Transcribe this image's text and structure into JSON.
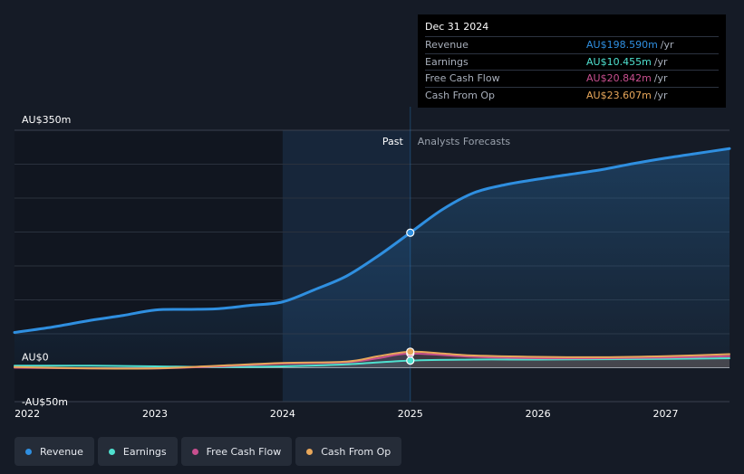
{
  "chart_data": {
    "type": "line",
    "y_tick_labels": [
      {
        "value": 350,
        "label": "AU$350m"
      },
      {
        "value": 0,
        "label": "AU$0"
      },
      {
        "value": -50,
        "label": "-AU$50m"
      }
    ],
    "ylim": [
      -50,
      350
    ],
    "xlim": [
      2021.9,
      2027.5
    ],
    "x_ticks": [
      2022,
      2023,
      2024,
      2025,
      2026,
      2027
    ],
    "grid": true,
    "past_forecast_split": 2025.0,
    "past_shade_start": 2024.0,
    "sections": {
      "past": "Past",
      "forecast": "Analysts Forecasts"
    },
    "series": [
      {
        "name": "Revenue",
        "color": "#2f8fe0",
        "x": [
          2021.9,
          2022.2,
          2022.5,
          2022.75,
          2023.0,
          2023.25,
          2023.5,
          2023.75,
          2024.0,
          2024.25,
          2024.5,
          2024.75,
          2025.0,
          2025.25,
          2025.5,
          2025.75,
          2026.0,
          2026.25,
          2026.5,
          2026.75,
          2027.0,
          2027.25,
          2027.5
        ],
        "y": [
          52,
          60,
          70,
          77,
          85,
          86,
          87,
          92,
          97,
          115,
          135,
          165,
          199,
          233,
          258,
          270,
          278,
          285,
          292,
          301,
          309,
          316,
          323
        ]
      },
      {
        "name": "Earnings",
        "color": "#4fe0cf",
        "x": [
          2021.9,
          2022.5,
          2023.0,
          2023.5,
          2024.0,
          2024.5,
          2025.0,
          2025.5,
          2026.0,
          2026.5,
          2027.0,
          2027.5
        ],
        "y": [
          3,
          3,
          2,
          1,
          2,
          5,
          10.5,
          12,
          12,
          12.5,
          13,
          14
        ]
      },
      {
        "name": "Free Cash Flow",
        "color": "#c84f8f",
        "x": [
          2021.9,
          2022.5,
          2023.0,
          2023.5,
          2024.0,
          2024.5,
          2024.75,
          2025.0,
          2025.5,
          2026.0,
          2026.5,
          2027.0,
          2027.5
        ],
        "y": [
          0,
          -1,
          -1,
          2,
          6,
          8,
          14,
          20.8,
          16,
          14,
          14,
          15,
          17
        ]
      },
      {
        "name": "Cash From Op",
        "color": "#e8a75a",
        "x": [
          2021.9,
          2022.5,
          2023.0,
          2023.5,
          2024.0,
          2024.5,
          2024.75,
          2025.0,
          2025.25,
          2025.5,
          2026.0,
          2026.5,
          2027.0,
          2027.5
        ],
        "y": [
          1,
          -1,
          -1,
          3,
          7,
          9,
          17,
          23.6,
          21,
          18,
          16,
          15.5,
          17,
          20
        ]
      }
    ]
  },
  "tooltip": {
    "date": "Dec 31 2024",
    "unit": "/yr",
    "rows": [
      {
        "label": "Revenue",
        "value": "AU$198.590m",
        "color": "#2f8fe0"
      },
      {
        "label": "Earnings",
        "value": "AU$10.455m",
        "color": "#4fe0cf"
      },
      {
        "label": "Free Cash Flow",
        "value": "AU$20.842m",
        "color": "#c84f8f"
      },
      {
        "label": "Cash From Op",
        "value": "AU$23.607m",
        "color": "#e8a75a"
      }
    ]
  },
  "legend": [
    {
      "label": "Revenue",
      "color": "#2f8fe0"
    },
    {
      "label": "Earnings",
      "color": "#4fe0cf"
    },
    {
      "label": "Free Cash Flow",
      "color": "#c84f8f"
    },
    {
      "label": "Cash From Op",
      "color": "#e8a75a"
    }
  ]
}
